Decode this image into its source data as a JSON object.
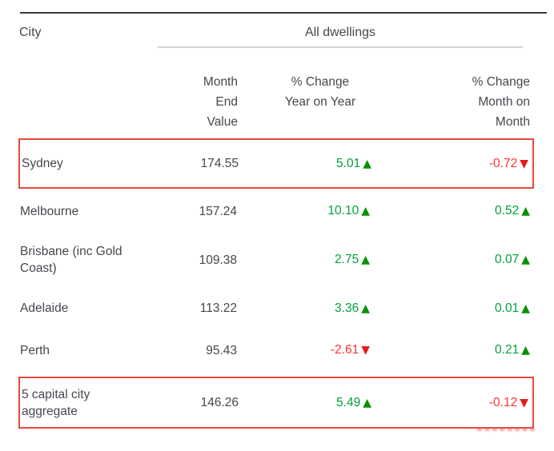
{
  "header": {
    "city_label": "City",
    "group_label": "All dwellings"
  },
  "subheader": {
    "value_lines": [
      "Month",
      "End",
      "Value"
    ],
    "yoy_lines": [
      "% Change",
      "Year on Year"
    ],
    "mom_lines": [
      "% Change",
      "Month on",
      "Month"
    ]
  },
  "icons": {
    "up_triangle": "▲",
    "down_triangle": "▼"
  },
  "colors": {
    "positive_green": "#00a23c",
    "negative_red": "#fb3333",
    "highlight_box_red": "#e8493e",
    "text_dark": "#47474f"
  },
  "rows": [
    {
      "city": "Sydney",
      "value": "174.55",
      "yoy": "5.01",
      "yoy_dir": "up",
      "yoy_icon": "▲",
      "mom": "-0.72",
      "mom_dir": "down",
      "mom_icon": "▼",
      "row_class": "boxed"
    },
    {
      "city": "Melbourne",
      "value": "157.24",
      "yoy": "10.10",
      "yoy_dir": "up",
      "yoy_icon": "▲",
      "mom": "0.52",
      "mom_dir": "up",
      "mom_icon": "▲",
      "row_class": "plain"
    },
    {
      "city": "Brisbane (inc Gold Coast)",
      "value": "109.38",
      "yoy": "2.75",
      "yoy_dir": "up",
      "yoy_icon": "▲",
      "mom": "0.07",
      "mom_dir": "up",
      "mom_icon": "▲",
      "row_class": "plain"
    },
    {
      "city": "Adelaide",
      "value": "113.22",
      "yoy": "3.36",
      "yoy_dir": "up",
      "yoy_icon": "▲",
      "mom": "0.01",
      "mom_dir": "up",
      "mom_icon": "▲",
      "row_class": "plain"
    },
    {
      "city": "Perth",
      "value": "95.43",
      "yoy": "-2.61",
      "yoy_dir": "down",
      "yoy_icon": "▼",
      "mom": "0.21",
      "mom_dir": "up",
      "mom_icon": "▲",
      "row_class": "plain"
    },
    {
      "city": "5 capital city aggregate",
      "value": "146.26",
      "yoy": "5.49",
      "yoy_dir": "up",
      "yoy_icon": "▲",
      "mom": "-0.12",
      "mom_dir": "down",
      "mom_icon": "▼",
      "row_class": "boxed"
    }
  ],
  "chart_data": {
    "type": "table",
    "title": "All dwellings",
    "columns": [
      "City",
      "Month End Value",
      "% Change Year on Year",
      "% Change Month on Month"
    ],
    "rows": [
      [
        "Sydney",
        174.55,
        5.01,
        -0.72
      ],
      [
        "Melbourne",
        157.24,
        10.1,
        0.52
      ],
      [
        "Brisbane (inc Gold Coast)",
        109.38,
        2.75,
        0.07
      ],
      [
        "Adelaide",
        113.22,
        3.36,
        0.01
      ],
      [
        "Perth",
        95.43,
        -2.61,
        0.21
      ],
      [
        "5 capital city aggregate",
        146.26,
        5.49,
        -0.12
      ]
    ],
    "highlighted_rows": [
      "Sydney",
      "5 capital city aggregate"
    ],
    "notes": "Positive changes shown in green with up triangle; negative in red with down triangle. Highlighted rows have red outline box."
  }
}
